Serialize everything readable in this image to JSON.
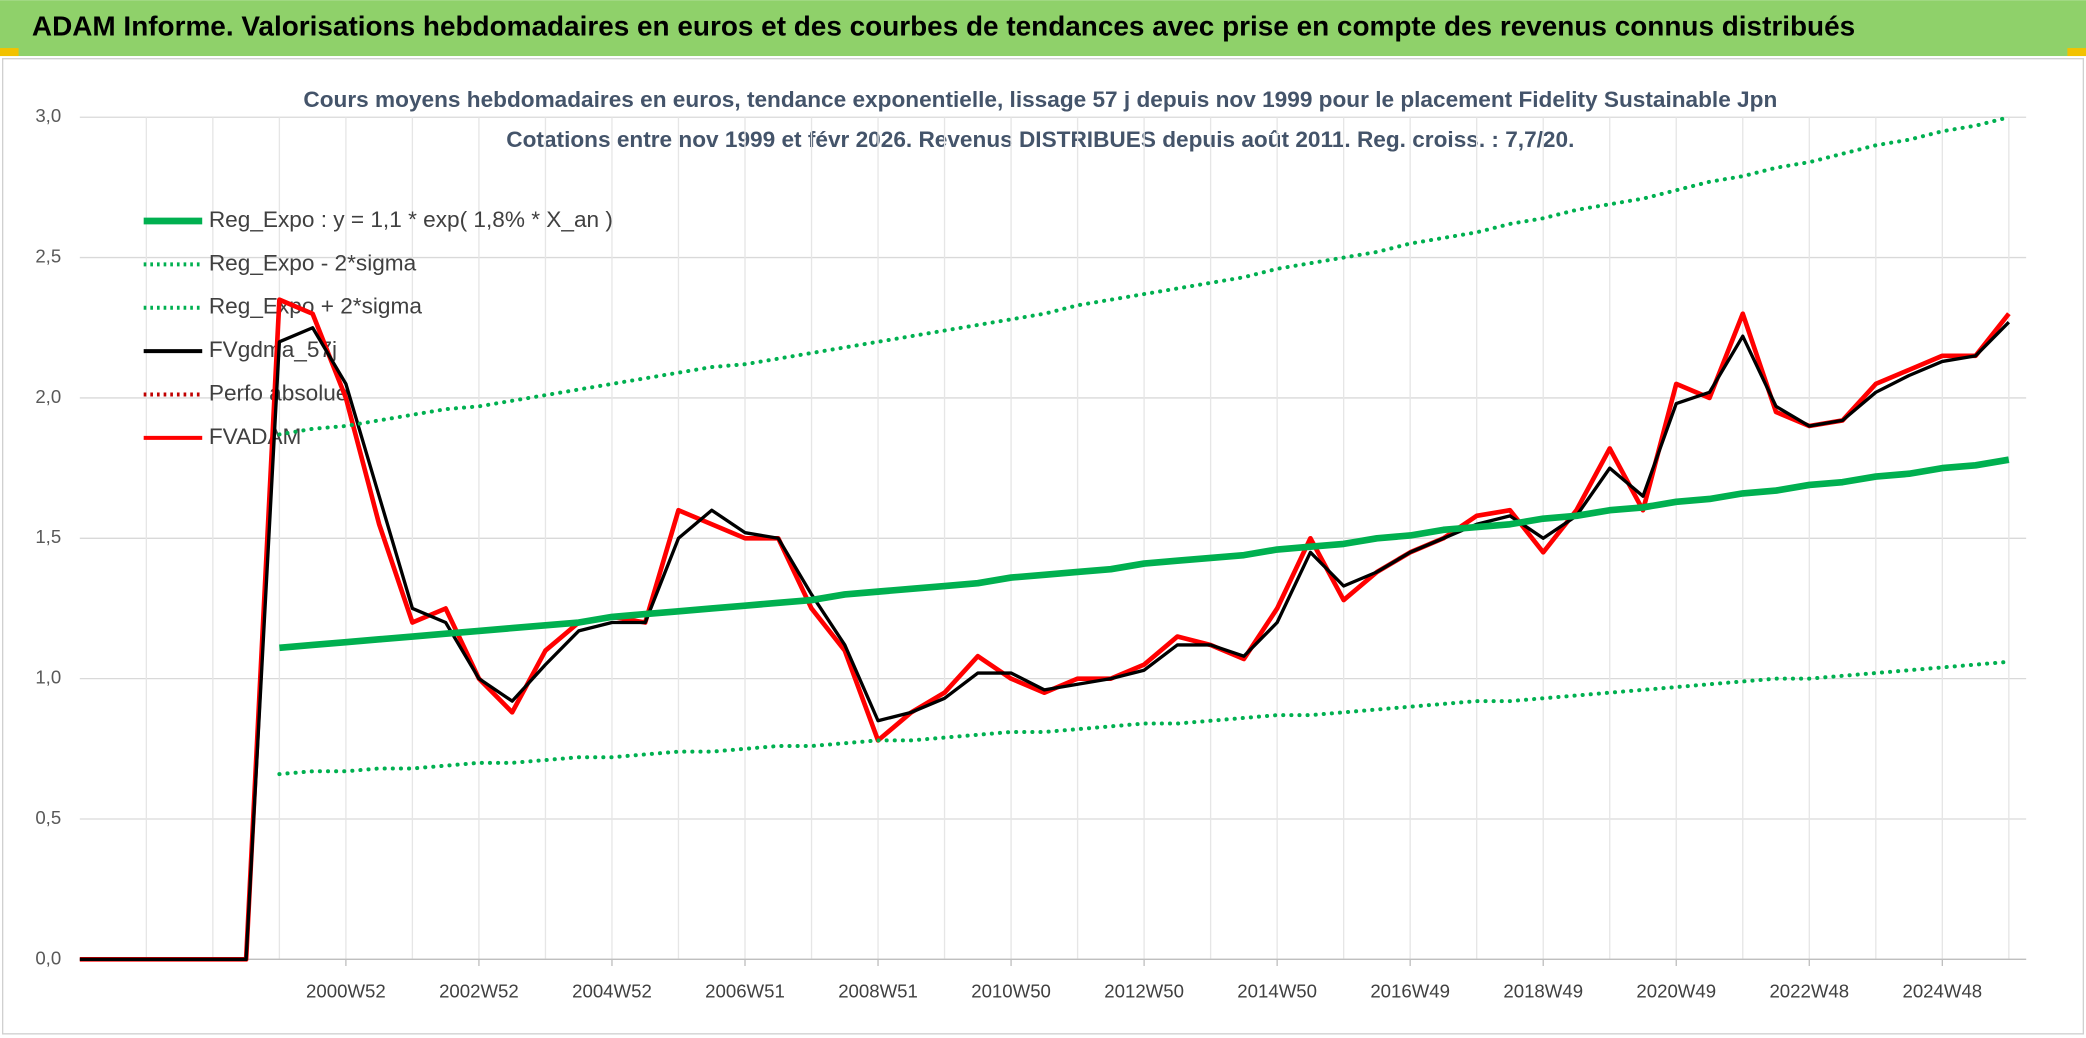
{
  "header": {
    "title": "ADAM Informe. Valorisations hebdomadaires en euros et des courbes de tendances avec prise en compte des revenus connus distribués"
  },
  "chart_data": {
    "type": "line",
    "title": "Cours moyens hebdomadaires en euros, tendance exponentielle, lissage 57 j depuis nov 1999 pour le placement Fidelity Sustainable Jpn",
    "subtitle": "Cotations entre nov 1999 et févr 2026. Revenus DISTRIBUES depuis août 2011. Reg. croiss. : 7,7/20.",
    "categories": [
      null,
      null,
      null,
      null,
      null,
      null,
      null,
      null,
      "2000W52",
      null,
      null,
      null,
      "2002W52",
      null,
      null,
      null,
      "2004W52",
      null,
      null,
      null,
      "2006W51",
      null,
      null,
      null,
      "2008W51",
      null,
      null,
      null,
      "2010W50",
      null,
      null,
      null,
      "2012W50",
      null,
      null,
      null,
      "2014W50",
      null,
      null,
      null,
      "2016W49",
      null,
      null,
      null,
      "2018W49",
      null,
      null,
      null,
      "2020W49",
      null,
      null,
      null,
      "2022W48",
      null,
      null,
      null,
      "2024W48",
      null,
      null
    ],
    "ylim": [
      0,
      3
    ],
    "yticks": [
      {
        "value": 0,
        "label": "0,0"
      },
      {
        "value": 0.5,
        "label": "0,5"
      },
      {
        "value": 1,
        "label": "1,0"
      },
      {
        "value": 1.5,
        "label": "1,5"
      },
      {
        "value": 2,
        "label": "2,0"
      },
      {
        "value": 2.5,
        "label": "2,5"
      },
      {
        "value": 3,
        "label": "3,0"
      }
    ],
    "grid": true,
    "legend": "top-left",
    "series": [
      {
        "name": "Reg_Expo : y = 1,1 * exp( 1,8% *  X_an )",
        "color": "#00b050",
        "style": "solid",
        "values": [
          null,
          null,
          null,
          null,
          null,
          null,
          1.11,
          1.12,
          1.13,
          1.14,
          1.15,
          1.16,
          1.17,
          1.18,
          1.19,
          1.2,
          1.22,
          1.23,
          1.24,
          1.25,
          1.26,
          1.27,
          1.28,
          1.3,
          1.31,
          1.32,
          1.33,
          1.34,
          1.36,
          1.37,
          1.38,
          1.39,
          1.41,
          1.42,
          1.43,
          1.44,
          1.46,
          1.47,
          1.48,
          1.5,
          1.51,
          1.53,
          1.54,
          1.55,
          1.57,
          1.58,
          1.6,
          1.61,
          1.63,
          1.64,
          1.66,
          1.67,
          1.69,
          1.7,
          1.72,
          1.73,
          1.75,
          1.76,
          1.78
        ]
      },
      {
        "name": "Reg_Expo - 2*sigma",
        "color": "#00b050",
        "style": "dotted",
        "values": [
          null,
          null,
          null,
          null,
          null,
          null,
          0.66,
          0.67,
          0.67,
          0.68,
          0.68,
          0.69,
          0.7,
          0.7,
          0.71,
          0.72,
          0.72,
          0.73,
          0.74,
          0.74,
          0.75,
          0.76,
          0.76,
          0.77,
          0.78,
          0.78,
          0.79,
          0.8,
          0.81,
          0.81,
          0.82,
          0.83,
          0.84,
          0.84,
          0.85,
          0.86,
          0.87,
          0.87,
          0.88,
          0.89,
          0.9,
          0.91,
          0.92,
          0.92,
          0.93,
          0.94,
          0.95,
          0.96,
          0.97,
          0.98,
          0.99,
          1.0,
          1.0,
          1.01,
          1.02,
          1.03,
          1.04,
          1.05,
          1.06
        ]
      },
      {
        "name": "Reg_Expo + 2*sigma",
        "color": "#00b050",
        "style": "dotted",
        "values": [
          null,
          null,
          null,
          null,
          null,
          null,
          1.87,
          1.89,
          1.9,
          1.92,
          1.94,
          1.96,
          1.97,
          1.99,
          2.01,
          2.03,
          2.05,
          2.07,
          2.09,
          2.11,
          2.12,
          2.14,
          2.16,
          2.18,
          2.2,
          2.22,
          2.24,
          2.26,
          2.28,
          2.3,
          2.33,
          2.35,
          2.37,
          2.39,
          2.41,
          2.43,
          2.46,
          2.48,
          2.5,
          2.52,
          2.55,
          2.57,
          2.59,
          2.62,
          2.64,
          2.67,
          2.69,
          2.71,
          2.74,
          2.77,
          2.79,
          2.82,
          2.84,
          2.87,
          2.9,
          2.92,
          2.95,
          2.97,
          3.0
        ]
      },
      {
        "name": "FVgdma_57j",
        "color": "#000000",
        "style": "solid",
        "values": [
          0,
          0,
          0,
          0,
          0,
          0,
          2.2,
          2.25,
          2.05,
          1.65,
          1.25,
          1.2,
          1.0,
          0.92,
          1.05,
          1.17,
          1.2,
          1.2,
          1.5,
          1.6,
          1.52,
          1.5,
          1.3,
          1.12,
          0.85,
          0.88,
          0.93,
          1.02,
          1.02,
          0.96,
          0.98,
          1.0,
          1.03,
          1.12,
          1.12,
          1.08,
          1.2,
          1.45,
          1.33,
          1.38,
          1.45,
          1.5,
          1.55,
          1.58,
          1.5,
          1.58,
          1.75,
          1.65,
          1.98,
          2.02,
          2.22,
          1.97,
          1.9,
          1.92,
          2.02,
          2.08,
          2.13,
          2.15,
          2.27
        ]
      },
      {
        "name": "Perfo absolue",
        "color": "#c00000",
        "style": "dotted",
        "values": [
          null,
          null,
          null,
          null,
          null,
          null,
          null,
          null,
          null,
          null,
          null,
          null,
          null,
          null,
          null,
          null,
          null,
          null,
          null,
          null,
          null,
          null,
          null,
          null,
          null,
          null,
          null,
          null,
          null,
          null,
          null,
          null,
          null,
          null,
          null,
          null,
          null,
          null,
          null,
          null,
          null,
          null,
          null,
          null,
          null,
          null,
          null,
          null,
          null,
          null,
          null,
          null,
          null,
          null,
          null,
          null,
          null,
          null,
          null
        ]
      },
      {
        "name": "FVADAM",
        "color": "#ff0000",
        "style": "solid",
        "values": [
          0,
          0,
          0,
          0,
          0,
          0,
          2.35,
          2.3,
          2.0,
          1.55,
          1.2,
          1.25,
          1.0,
          0.88,
          1.1,
          1.2,
          1.22,
          1.2,
          1.6,
          1.55,
          1.5,
          1.5,
          1.25,
          1.1,
          0.78,
          0.88,
          0.95,
          1.08,
          1.0,
          0.95,
          1.0,
          1.0,
          1.05,
          1.15,
          1.12,
          1.07,
          1.25,
          1.5,
          1.28,
          1.38,
          1.45,
          1.5,
          1.58,
          1.6,
          1.45,
          1.6,
          1.82,
          1.6,
          2.05,
          2.0,
          2.3,
          1.95,
          1.9,
          1.92,
          2.05,
          2.1,
          2.15,
          2.15,
          2.3
        ]
      }
    ]
  }
}
